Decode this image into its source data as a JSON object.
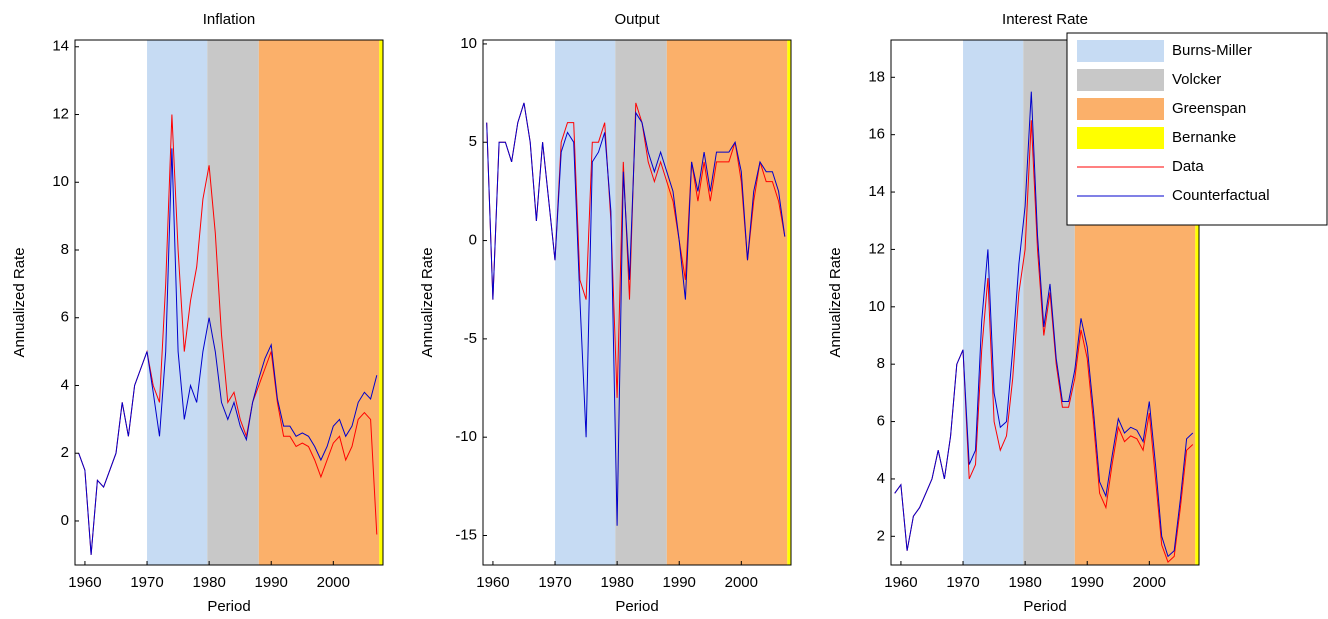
{
  "chart_data": [
    {
      "type": "line",
      "title": "Inflation",
      "x_label": "Period",
      "y_label": "Annualized Rate",
      "x": [
        1959,
        1960,
        1961,
        1962,
        1963,
        1964,
        1965,
        1966,
        1967,
        1968,
        1969,
        1970,
        1971,
        1972,
        1973,
        1974,
        1975,
        1976,
        1977,
        1978,
        1979,
        1980,
        1981,
        1982,
        1983,
        1984,
        1985,
        1986,
        1987,
        1988,
        1989,
        1990,
        1991,
        1992,
        1993,
        1994,
        1995,
        1996,
        1997,
        1998,
        1999,
        2000,
        2001,
        2002,
        2003,
        2004,
        2005,
        2006,
        2007
      ],
      "series": [
        {
          "color": "#ff0000",
          "values": [
            2.0,
            1.5,
            -1.0,
            1.2,
            1.0,
            1.5,
            2.0,
            3.5,
            2.5,
            4.0,
            4.5,
            5.0,
            4.0,
            3.5,
            7.0,
            12.0,
            8.0,
            5.0,
            6.5,
            7.5,
            9.5,
            10.5,
            8.5,
            5.5,
            3.5,
            3.8,
            3.0,
            2.5,
            3.5,
            4.0,
            4.5,
            5.0,
            3.5,
            2.5,
            2.5,
            2.2,
            2.3,
            2.2,
            1.8,
            1.3,
            1.8,
            2.3,
            2.5,
            1.8,
            2.2,
            3.0,
            3.2,
            3.0,
            -0.4
          ]
        },
        {
          "color": "#0000cc",
          "values": [
            2.0,
            1.5,
            -1.0,
            1.2,
            1.0,
            1.5,
            2.0,
            3.5,
            2.5,
            4.0,
            4.5,
            5.0,
            3.8,
            2.5,
            5.0,
            11.0,
            5.0,
            3.0,
            4.0,
            3.5,
            5.0,
            6.0,
            5.0,
            3.5,
            3.0,
            3.5,
            2.8,
            2.4,
            3.5,
            4.2,
            4.8,
            5.2,
            3.6,
            2.8,
            2.8,
            2.5,
            2.6,
            2.5,
            2.2,
            1.8,
            2.2,
            2.8,
            3.0,
            2.5,
            2.8,
            3.5,
            3.8,
            3.6,
            4.3
          ]
        }
      ],
      "regions": [
        {
          "color": "#c6dbf3",
          "start": 1970,
          "end": 1979.7
        },
        {
          "color": "#c8c8c8",
          "start": 1979.7,
          "end": 1988
        },
        {
          "color": "#fbb06a",
          "start": 1988,
          "end": 2007.4
        },
        {
          "color": "#ffff00",
          "start": 2007.4,
          "end": 2008
        }
      ],
      "xlim": [
        1958.4,
        2008
      ],
      "xticks": [
        1960,
        1970,
        1980,
        1990,
        2000
      ],
      "ylim": [
        -1.3,
        14.2
      ],
      "yticks": [
        0,
        2,
        4,
        6,
        8,
        10,
        12,
        14
      ]
    },
    {
      "type": "line",
      "title": "Output",
      "x_label": "Period",
      "y_label": "Annualized Rate",
      "x": [
        1959,
        1960,
        1961,
        1962,
        1963,
        1964,
        1965,
        1966,
        1967,
        1968,
        1969,
        1970,
        1971,
        1972,
        1973,
        1974,
        1975,
        1976,
        1977,
        1978,
        1979,
        1980,
        1981,
        1982,
        1983,
        1984,
        1985,
        1986,
        1987,
        1988,
        1989,
        1990,
        1991,
        1992,
        1993,
        1994,
        1995,
        1996,
        1997,
        1998,
        1999,
        2000,
        2001,
        2002,
        2003,
        2004,
        2005,
        2006,
        2007
      ],
      "series": [
        {
          "color": "#ff0000",
          "values": [
            6,
            -3,
            5,
            5,
            4,
            6,
            7,
            5,
            1,
            5,
            2,
            -1,
            5,
            6,
            6,
            -2,
            -3,
            5,
            5,
            6,
            1,
            -8,
            4,
            -3,
            7,
            6,
            4,
            3,
            4,
            3,
            2,
            0,
            -2,
            4,
            2,
            4,
            2,
            4,
            4,
            4,
            5,
            3,
            -1,
            2,
            4,
            3,
            3,
            2,
            0.2
          ]
        },
        {
          "color": "#0000cc",
          "values": [
            6,
            -3,
            5,
            5,
            4,
            6,
            7,
            5,
            1,
            5,
            2,
            -1,
            4.5,
            5.5,
            5,
            -3,
            -10,
            4,
            4.5,
            5.5,
            1.5,
            -14.5,
            3.5,
            -2,
            6.5,
            6,
            4.5,
            3.5,
            4.5,
            3.5,
            2.5,
            0,
            -3,
            4,
            2.5,
            4.5,
            2.5,
            4.5,
            4.5,
            4.5,
            5,
            3.5,
            -1,
            2.5,
            4,
            3.5,
            3.5,
            2.5,
            0.2
          ]
        }
      ],
      "regions": [
        {
          "color": "#c6dbf3",
          "start": 1970,
          "end": 1979.7
        },
        {
          "color": "#c8c8c8",
          "start": 1979.7,
          "end": 1988
        },
        {
          "color": "#fbb06a",
          "start": 1988,
          "end": 2007.4
        },
        {
          "color": "#ffff00",
          "start": 2007.4,
          "end": 2008
        }
      ],
      "xlim": [
        1958.4,
        2008
      ],
      "xticks": [
        1960,
        1970,
        1980,
        1990,
        2000
      ],
      "ylim": [
        -16.5,
        10.2
      ],
      "yticks": [
        -15,
        -10,
        -5,
        0,
        5,
        10
      ]
    },
    {
      "type": "line",
      "title": "Interest Rate",
      "x_label": "Period",
      "y_label": "Annualized Rate",
      "x": [
        1959,
        1960,
        1961,
        1962,
        1963,
        1964,
        1965,
        1966,
        1967,
        1968,
        1969,
        1970,
        1971,
        1972,
        1973,
        1974,
        1975,
        1976,
        1977,
        1978,
        1979,
        1980,
        1981,
        1982,
        1983,
        1984,
        1985,
        1986,
        1987,
        1988,
        1989,
        1990,
        1991,
        1992,
        1993,
        1994,
        1995,
        1996,
        1997,
        1998,
        1999,
        2000,
        2001,
        2002,
        2003,
        2004,
        2005,
        2006,
        2007
      ],
      "series": [
        {
          "name": "Data",
          "color": "#ff0000",
          "values": [
            3.5,
            3.8,
            1.5,
            2.7,
            3.0,
            3.5,
            4.0,
            5.0,
            4.0,
            5.5,
            8.0,
            8.5,
            4.0,
            4.5,
            8.5,
            11.0,
            6.0,
            5.0,
            5.5,
            7.5,
            10.5,
            12.0,
            16.5,
            12.0,
            9.0,
            10.5,
            8.0,
            6.5,
            6.5,
            7.5,
            9.2,
            8.2,
            6.0,
            3.5,
            3.0,
            4.5,
            5.8,
            5.3,
            5.5,
            5.4,
            5.0,
            6.3,
            4.0,
            1.7,
            1.1,
            1.3,
            3.0,
            5.0,
            5.2
          ]
        },
        {
          "name": "Counterfactual",
          "color": "#0000cc",
          "values": [
            3.5,
            3.8,
            1.5,
            2.7,
            3.0,
            3.5,
            4.0,
            5.0,
            4.0,
            5.5,
            8.0,
            8.5,
            4.5,
            5.0,
            9.5,
            12.0,
            7.0,
            5.8,
            6.0,
            8.5,
            11.5,
            13.5,
            17.5,
            12.5,
            9.3,
            10.8,
            8.2,
            6.7,
            6.7,
            7.8,
            9.6,
            8.6,
            6.4,
            3.9,
            3.4,
            4.8,
            6.1,
            5.6,
            5.8,
            5.7,
            5.3,
            6.7,
            4.5,
            2.0,
            1.3,
            1.5,
            3.3,
            5.4,
            5.6
          ]
        }
      ],
      "regions": [
        {
          "name": "Burns-Miller",
          "color": "#c6dbf3",
          "start": 1970,
          "end": 1979.7
        },
        {
          "name": "Volcker",
          "color": "#c8c8c8",
          "start": 1979.7,
          "end": 1988
        },
        {
          "name": "Greenspan",
          "color": "#fbb06a",
          "start": 1988,
          "end": 2007.4
        },
        {
          "name": "Bernanke",
          "color": "#ffff00",
          "start": 2007.4,
          "end": 2008
        }
      ],
      "xlim": [
        1958.4,
        2008
      ],
      "xticks": [
        1960,
        1970,
        1980,
        1990,
        2000
      ],
      "ylim": [
        1,
        19.3
      ],
      "yticks": [
        2,
        4,
        6,
        8,
        10,
        12,
        14,
        16,
        18
      ],
      "legend": "upper right"
    }
  ]
}
